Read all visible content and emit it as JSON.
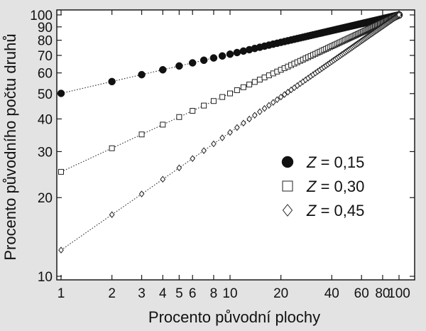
{
  "chart_data": {
    "type": "scatter",
    "xscale": "log",
    "yscale": "log",
    "xlim": [
      1,
      100
    ],
    "ylim": [
      10,
      100
    ],
    "xlabel": "Procento původní plochy",
    "ylabel": "Procento původního počtu druhů",
    "x_ticks": [
      1,
      2,
      3,
      4,
      5,
      6,
      8,
      10,
      20,
      40,
      60,
      80,
      100
    ],
    "y_ticks": [
      10,
      20,
      30,
      40,
      50,
      60,
      70,
      80,
      90,
      100
    ],
    "x_tick_labels": [
      "1",
      "2",
      "3",
      "4",
      "5",
      "6",
      "8",
      "10",
      "20",
      "40",
      "60",
      "80",
      "100"
    ],
    "y_tick_labels": [
      "10",
      "20",
      "30",
      "40",
      "50",
      "60",
      "70",
      "80",
      "90",
      "100"
    ],
    "grid": false,
    "legend_position": "center-right",
    "x": [
      1,
      2,
      3,
      4,
      5,
      6,
      7,
      8,
      9,
      10,
      11,
      12,
      13,
      14,
      15,
      16,
      17,
      18,
      19,
      20,
      21,
      22,
      23,
      24,
      25,
      26,
      27,
      28,
      29,
      30,
      31,
      32,
      33,
      34,
      35,
      36,
      37,
      38,
      39,
      40,
      41,
      42,
      43,
      44,
      45,
      46,
      47,
      48,
      49,
      50,
      51,
      52,
      53,
      54,
      55,
      56,
      57,
      58,
      59,
      60,
      61,
      62,
      63,
      64,
      65,
      66,
      67,
      68,
      69,
      70,
      71,
      72,
      73,
      74,
      75,
      76,
      77,
      78,
      79,
      80,
      81,
      82,
      83,
      84,
      85,
      86,
      87,
      88,
      89,
      90,
      91,
      92,
      93,
      94,
      95,
      96,
      97,
      98,
      99,
      100
    ],
    "series": [
      {
        "label": "Z = 0,15",
        "z": 0.15,
        "marker": "circle",
        "y_at_x1": 50.1
      },
      {
        "label": "Z = 0,30",
        "z": 0.3,
        "marker": "square",
        "y_at_x1": 25.1
      },
      {
        "label": "Z = 0,45",
        "z": 0.45,
        "marker": "diamond",
        "y_at_x1": 12.6
      }
    ],
    "legend": {
      "items": [
        {
          "symbol": "Z",
          "text": "= 0,15"
        },
        {
          "symbol": "Z",
          "text": "= 0,30"
        },
        {
          "symbol": "Z",
          "text": "= 0,45"
        }
      ]
    }
  }
}
